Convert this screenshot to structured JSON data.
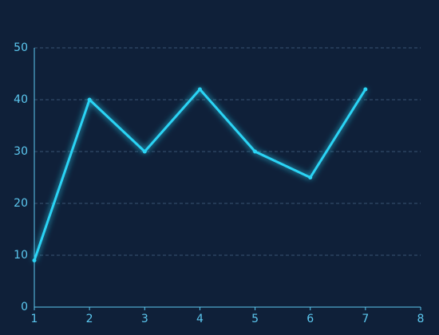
{
  "chart_data": {
    "type": "line",
    "x": [
      1,
      2,
      3,
      4,
      5,
      6,
      7
    ],
    "series": [
      {
        "color": "#2ad4f5",
        "values": [
          9,
          40,
          30,
          42,
          30,
          25,
          42
        ]
      }
    ],
    "xlim": [
      1,
      8
    ],
    "xticks": [
      1,
      2,
      3,
      4,
      5,
      6,
      7,
      8
    ],
    "ylim": [
      0,
      50
    ],
    "yticks": [
      0,
      10,
      20,
      30,
      40,
      50
    ],
    "grid": true
  }
}
